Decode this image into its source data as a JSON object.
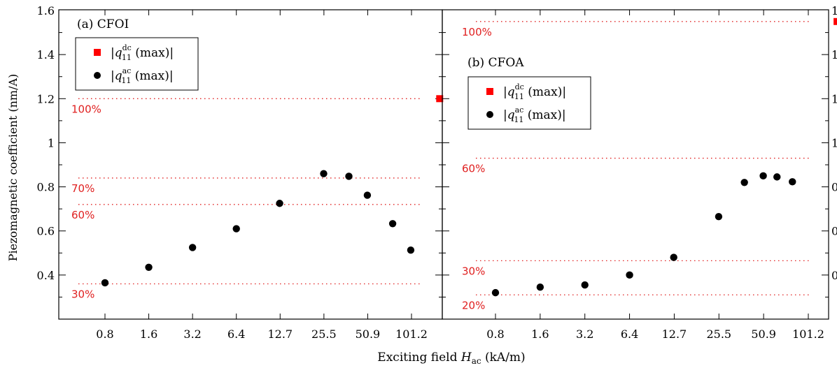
{
  "figure": {
    "ylabel": "Piezomagnetic coefficient (nm/A)",
    "xlabel_prefix": "Exciting field ",
    "xlabel_var": "H",
    "xlabel_sub": "ac",
    "xlabel_suffix": " (kA/m)",
    "x_tick_labels": [
      "0.8",
      "1.6",
      "3.2",
      "6.4",
      "12.7",
      "25.5",
      "50.9",
      "101.2"
    ],
    "y_tick_labels": [
      "0.4",
      "0.6",
      "0.8",
      "1",
      "1.2",
      "1.4",
      "1.6"
    ],
    "colors": {
      "dc": "#ff0000",
      "ac": "#000000",
      "ref": "#e02020"
    }
  },
  "chart_data": [
    {
      "type": "scatter",
      "title": "(a) CFOI",
      "x_scale": "log2",
      "ylim": [
        0.2,
        1.6
      ],
      "legend": {
        "placement": "top-left",
        "entries": [
          {
            "key": "dc",
            "label": "|q",
            "sub": "11",
            "sup": "dc",
            "tail": "(max)|"
          },
          {
            "key": "ac",
            "label": "|q",
            "sub": "11",
            "sup": "ac",
            "tail": "(max)|"
          }
        ]
      },
      "series": [
        {
          "key": "ac",
          "x": [
            0.8,
            1.6,
            3.2,
            6.4,
            12.7,
            25.5,
            38.0,
            50.9,
            76.0,
            101.2
          ],
          "y": [
            0.365,
            0.435,
            0.525,
            0.61,
            0.725,
            0.86,
            0.848,
            0.762,
            0.633,
            0.513
          ]
        },
        {
          "key": "dc",
          "x": [
            160.0
          ],
          "y": [
            1.2
          ]
        }
      ],
      "reference_lines": [
        {
          "label": "100%",
          "y": 1.2
        },
        {
          "label": "70%",
          "y": 0.84
        },
        {
          "label": "60%",
          "y": 0.72
        },
        {
          "label": "30%",
          "y": 0.36
        }
      ]
    },
    {
      "type": "scatter",
      "title": "(b) CFOA",
      "x_scale": "log2",
      "ylim": [
        0.2,
        1.6
      ],
      "legend": {
        "placement": "upper-left",
        "entries": [
          {
            "key": "dc",
            "label": "|q",
            "sub": "11",
            "sup": "dc",
            "tail": "(max)|"
          },
          {
            "key": "ac",
            "label": "|q",
            "sub": "11",
            "sup": "ac",
            "tail": "(max)|"
          }
        ]
      },
      "series": [
        {
          "key": "ac",
          "x": [
            0.8,
            1.6,
            3.2,
            6.4,
            12.7,
            25.5,
            38.0,
            50.9,
            63.0,
            80.0
          ],
          "y": [
            0.32,
            0.345,
            0.355,
            0.4,
            0.48,
            0.665,
            0.82,
            0.85,
            0.845,
            0.823
          ]
        },
        {
          "key": "dc",
          "x": [
            160.0
          ],
          "y": [
            1.55
          ]
        }
      ],
      "reference_lines": [
        {
          "label": "100%",
          "y": 1.55
        },
        {
          "label": "60%",
          "y": 0.93
        },
        {
          "label": "30%",
          "y": 0.465
        },
        {
          "label": "20%",
          "y": 0.31
        }
      ]
    }
  ]
}
